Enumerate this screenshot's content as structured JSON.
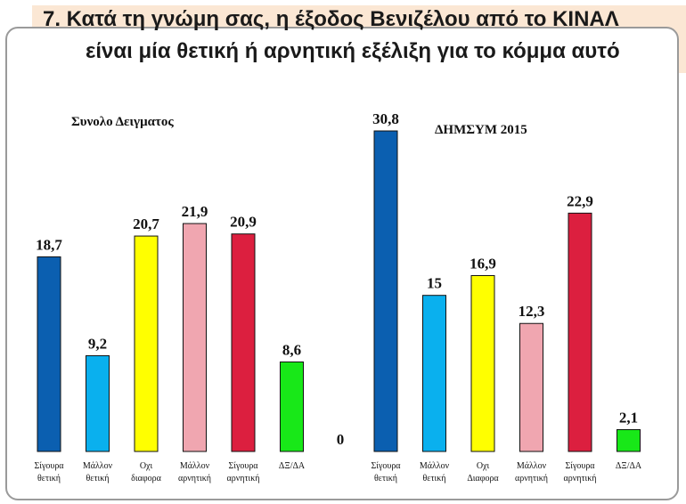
{
  "title": {
    "line1": "7.   Κατά τη γνώμη σας, η έξοδος Βενιζέλου από το ΚΙΝΑΛ",
    "line2": "είναι μία θετική ή αρνητική εξέλιξη για το κόμμα αυτό"
  },
  "chart_data": {
    "type": "bar",
    "colors": [
      "#0b5fb0",
      "#0ab0ee",
      "#ffff00",
      "#f0a6b0",
      "#dc1f3f",
      "#18e818"
    ],
    "ylim": [
      0,
      32
    ],
    "groups": [
      {
        "name": "Συνολο Δειγματος",
        "categories": [
          [
            "Σίγουρα",
            "θετική"
          ],
          [
            "Μάλλον",
            "θετική"
          ],
          [
            "Οχι",
            "διαφορα"
          ],
          [
            "Μάλλον",
            "αρνητική"
          ],
          [
            "Σίγουρα",
            "αρνητική"
          ],
          [
            "ΔΞ/ΔΑ"
          ]
        ],
        "values": [
          18.7,
          9.2,
          20.7,
          21.9,
          20.9,
          8.6
        ],
        "labels": [
          "18,7",
          "9,2",
          "20,7",
          "21,9",
          "20,9",
          "8,6"
        ]
      },
      {
        "name": "",
        "categories": [],
        "values": [
          0
        ],
        "labels": [
          "0"
        ]
      },
      {
        "name": "ΔΗΜΣΥΜ 2015",
        "categories": [
          [
            "Σίγουρα",
            "θετική"
          ],
          [
            "Μάλλον",
            "θετική"
          ],
          [
            "Οχι",
            "Διαφορα"
          ],
          [
            "Μάλλον",
            "αρνητική"
          ],
          [
            "Σίγουρα",
            "αρνητική"
          ],
          [
            "ΔΞ/ΔΑ"
          ]
        ],
        "values": [
          30.8,
          15,
          16.9,
          12.3,
          22.9,
          2.1
        ],
        "labels": [
          "30,8",
          "15",
          "16,9",
          "12,3",
          "22,9",
          "2,1"
        ]
      }
    ]
  }
}
